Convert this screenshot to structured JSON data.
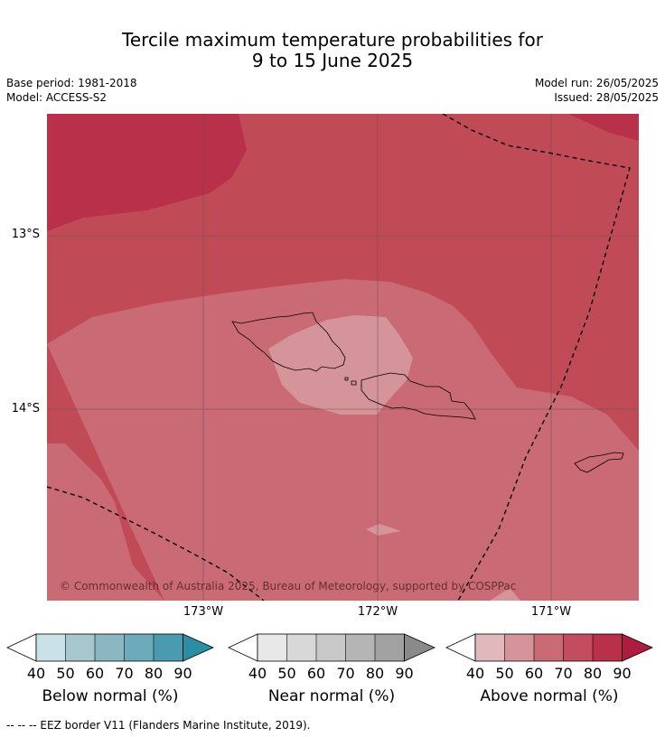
{
  "header": {
    "title_line1": "Tercile maximum temperature probabilities for",
    "title_line2": "9 to 15 June 2025",
    "base_period": "Base period: 1981-2018",
    "model": "Model: ACCESS-S2",
    "model_run": "Model run: 26/05/2025",
    "issued": "Issued: 28/05/2025"
  },
  "map": {
    "latitude_labels": [
      "13°S",
      "14°S"
    ],
    "longitude_labels": [
      "173°W",
      "172°W",
      "171°W"
    ],
    "copyright": "© Commonwealth of Australia 2025, Bureau of Meteorology, supported by COSPPac",
    "colors": {
      "above_80_90": "#b9304a",
      "above_70_80": "#c14a57",
      "above_60_70": "#ca6a74",
      "above_50_60": "#d5939a",
      "land_outline": "#000000",
      "eez_border": "#000000"
    }
  },
  "legends": [
    {
      "title": "Below normal (%)",
      "ticks": [
        "40",
        "50",
        "60",
        "70",
        "80",
        "90"
      ],
      "colors": [
        "#c9e2e8",
        "#a5c7cd",
        "#8ab7c2",
        "#6babba",
        "#4a9bb0",
        "#2b8ea4"
      ]
    },
    {
      "title": "Near normal (%)",
      "ticks": [
        "40",
        "50",
        "60",
        "70",
        "80",
        "90"
      ],
      "colors": [
        "#e8e8e8",
        "#d8d8d8",
        "#c8c8c8",
        "#b5b5b5",
        "#a2a2a2",
        "#8a8a8a"
      ]
    },
    {
      "title": "Above normal (%)",
      "ticks": [
        "40",
        "50",
        "60",
        "70",
        "80",
        "90"
      ],
      "colors": [
        "#e1b9bd",
        "#d5949a",
        "#ca6a74",
        "#c14d5f",
        "#b9304a",
        "#ae1c40"
      ]
    }
  ],
  "footnote": "--  --  -- EEZ border V11 (Flanders Marine Institute, 2019)."
}
